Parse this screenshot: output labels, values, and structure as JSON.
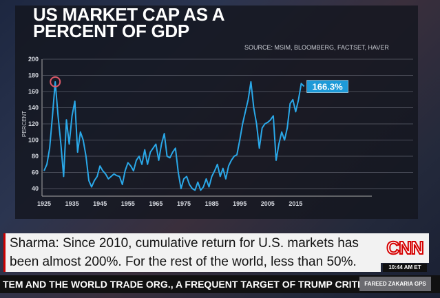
{
  "chart_data": {
    "type": "line",
    "title": "US MARKET CAP AS A PERCENT OF GDP",
    "source": "SOURCE: MSIM, BLOOMBERG, FACTSET, HAVER",
    "ylabel": "PERCENT",
    "xlabel": "",
    "ylim": [
      40,
      200
    ],
    "yticks": [
      200,
      180,
      160,
      140,
      120,
      100,
      80,
      60,
      40
    ],
    "xticks": [
      1925,
      1935,
      1945,
      1955,
      1965,
      1975,
      1985,
      1995,
      2005,
      2015
    ],
    "xlim": [
      1924,
      2018
    ],
    "grid": true,
    "line_color": "#2aa8e8",
    "highlight_circle": {
      "x": 1929,
      "y": 172,
      "color": "#e05a6a"
    },
    "end_label": "166.3%",
    "series": [
      {
        "x": [
          1925,
          1926,
          1927,
          1928,
          1929,
          1930,
          1931,
          1932,
          1933,
          1934,
          1935,
          1936,
          1937,
          1938,
          1939,
          1940,
          1941,
          1942,
          1943,
          1944,
          1945,
          1946,
          1947,
          1948,
          1949,
          1950,
          1951,
          1952,
          1953,
          1954,
          1955,
          1956,
          1957,
          1958,
          1959,
          1960,
          1961,
          1962,
          1963,
          1964,
          1965,
          1966,
          1967,
          1968,
          1969,
          1970,
          1971,
          1972,
          1973,
          1974,
          1975,
          1976,
          1977,
          1978,
          1979,
          1980,
          1981,
          1982,
          1983,
          1984,
          1985,
          1986,
          1987,
          1988,
          1989,
          1990,
          1991,
          1992,
          1993,
          1994,
          1995,
          1996,
          1997,
          1998,
          1999,
          2000,
          2001,
          2002,
          2003,
          2004,
          2005,
          2006,
          2007,
          2008,
          2009,
          2010,
          2011,
          2012,
          2013,
          2014,
          2015,
          2016,
          2017,
          2018
        ],
        "values": [
          62,
          70,
          90,
          130,
          172,
          130,
          95,
          55,
          125,
          95,
          130,
          148,
          85,
          110,
          100,
          80,
          50,
          42,
          50,
          55,
          68,
          62,
          58,
          52,
          55,
          58,
          56,
          55,
          45,
          62,
          72,
          68,
          62,
          75,
          80,
          70,
          88,
          70,
          85,
          90,
          95,
          75,
          95,
          108,
          80,
          78,
          85,
          90,
          60,
          40,
          52,
          55,
          45,
          40,
          38,
          48,
          38,
          42,
          52,
          42,
          55,
          62,
          70,
          55,
          65,
          52,
          68,
          75,
          80,
          82,
          100,
          120,
          135,
          150,
          172,
          140,
          120,
          90,
          115,
          120,
          122,
          125,
          130,
          75,
          95,
          110,
          100,
          115,
          145,
          150,
          135,
          150,
          170,
          166.3
        ]
      }
    ]
  },
  "lower_third": {
    "line1": "Sharma: Since 2010, cumulative return for U.S. markets has",
    "line2": "been almost 200%. For the rest of the world, less than 50%."
  },
  "network_logo": "CNN",
  "time": "10:44 AM ET",
  "ticker": "TEM AND THE WORLD TRADE ORG., A FREQUENT TARGET OF TRUMP CRITICIS",
  "show_name": "FAREED ZAKARIA GPS"
}
